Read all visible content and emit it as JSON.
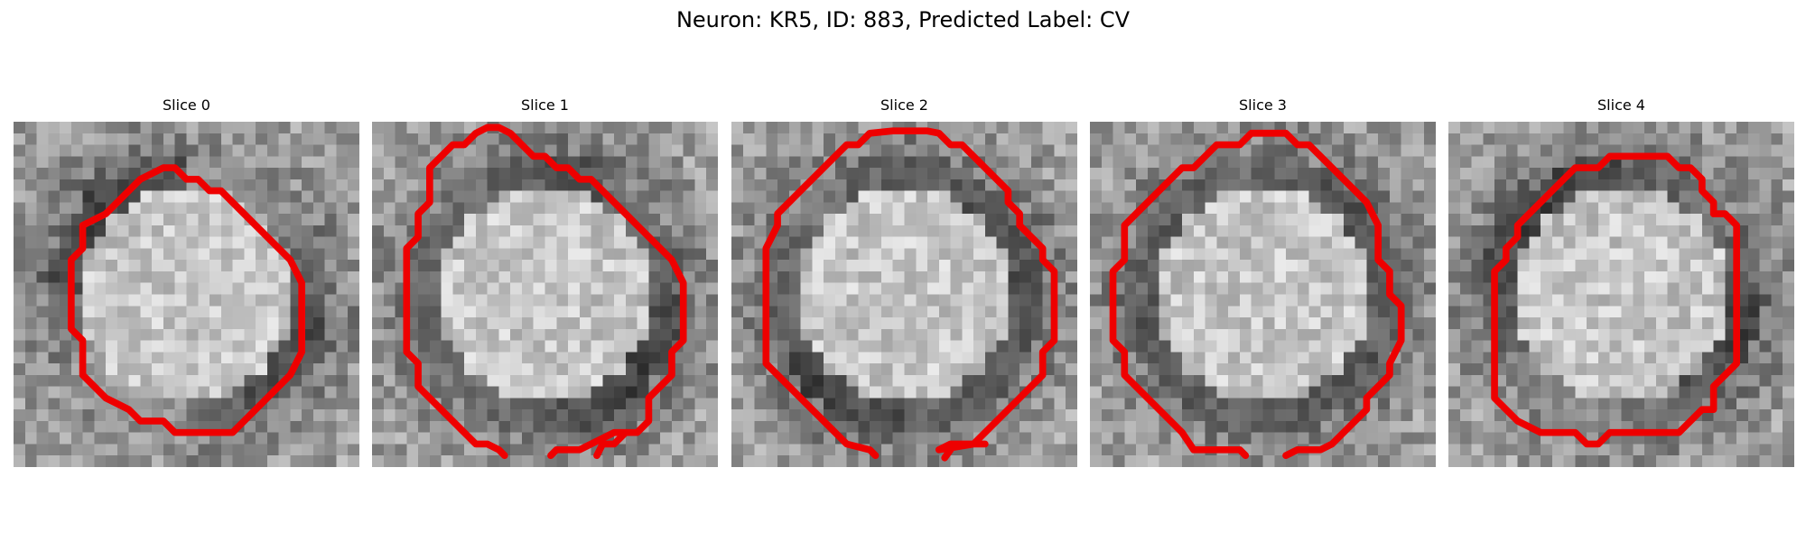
{
  "figure": {
    "title": "Neuron: KR5, ID: 883, Predicted Label: CV"
  },
  "slices": [
    {
      "label": "Slice 0",
      "darkness": [
        0.85,
        0.95,
        0.8,
        0.35,
        0.4,
        0.65,
        0.9,
        0.85,
        0.6,
        0.35,
        0.3,
        0.55
      ]
    },
    {
      "label": "Slice 1",
      "darkness": [
        0.7,
        0.6,
        0.75,
        0.8,
        0.55,
        0.7,
        0.85,
        0.95,
        0.8,
        0.65,
        0.6,
        0.7
      ]
    },
    {
      "label": "Slice 2",
      "darkness": [
        0.65,
        0.6,
        0.7,
        0.75,
        0.8,
        0.85,
        0.8,
        0.75,
        0.7,
        0.85,
        0.95,
        0.7
      ]
    },
    {
      "label": "Slice 3",
      "darkness": [
        0.7,
        0.75,
        0.65,
        0.7,
        0.8,
        0.75,
        0.7,
        0.8,
        0.75,
        0.7,
        0.75,
        0.8
      ]
    },
    {
      "label": "Slice 4",
      "darkness": [
        0.85,
        0.95,
        0.9,
        0.7,
        0.55,
        0.7,
        0.95,
        0.8,
        0.55,
        0.4,
        0.45,
        0.75
      ]
    }
  ],
  "colors": {
    "contour": "#ee0000",
    "background": "#ffffff"
  }
}
